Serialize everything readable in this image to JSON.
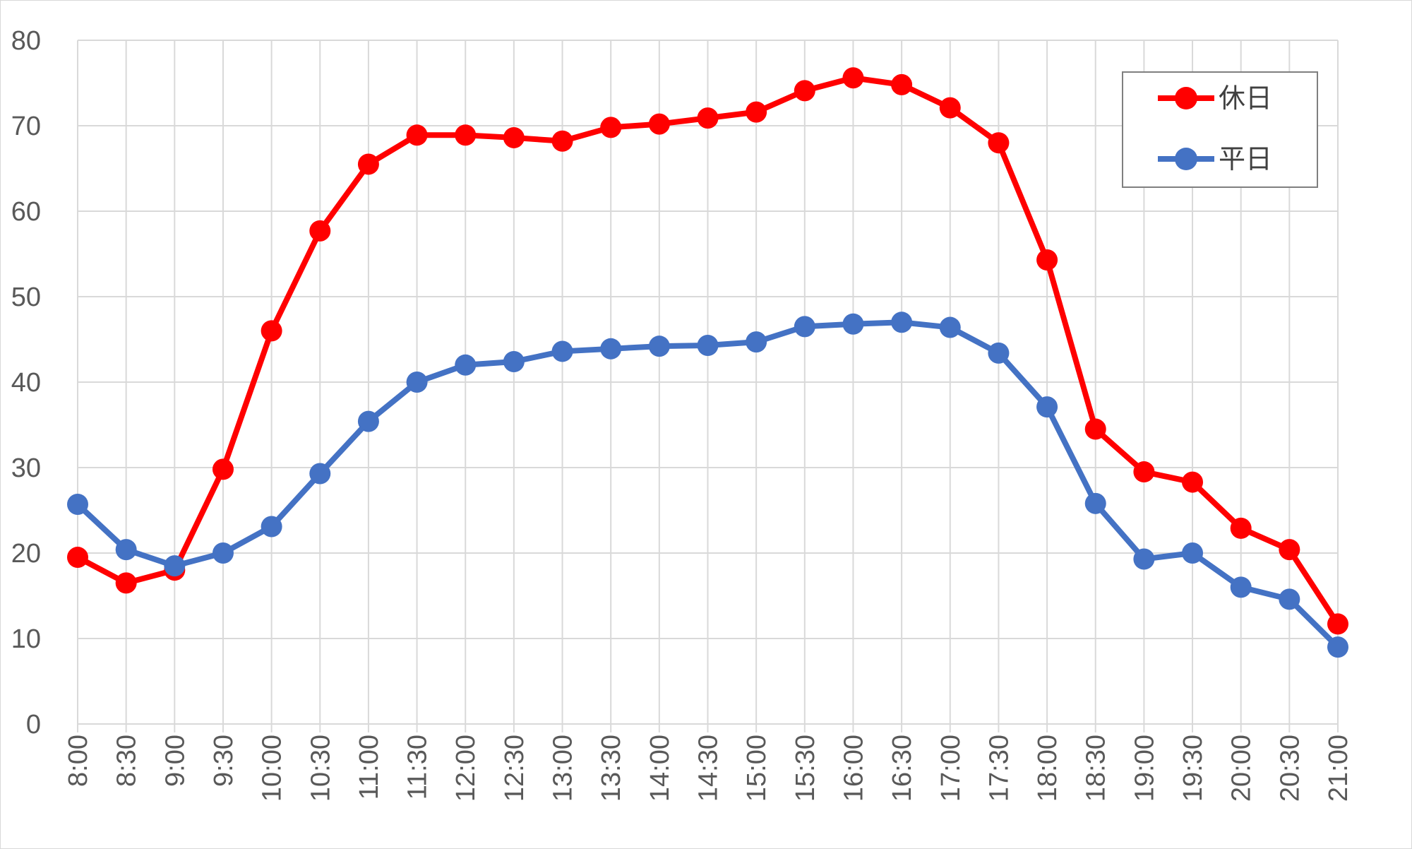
{
  "chart_data": {
    "type": "line",
    "title": "",
    "xlabel": "",
    "ylabel": "",
    "ylim": [
      0,
      80
    ],
    "yticks": [
      "0",
      "10",
      "20",
      "30",
      "40",
      "50",
      "60",
      "70",
      "80"
    ],
    "categories": [
      "8:00",
      "8:30",
      "9:00",
      "9:30",
      "10:00",
      "10:30",
      "11:00",
      "11:30",
      "12:00",
      "12:30",
      "13:00",
      "13:30",
      "14:00",
      "14:30",
      "15:00",
      "15:30",
      "16:00",
      "16:30",
      "17:00",
      "17:30",
      "18:00",
      "18:30",
      "19:00",
      "19:30",
      "20:00",
      "20:30",
      "21:00"
    ],
    "grid": true,
    "legend_position": "top-right",
    "series": [
      {
        "name": "休日",
        "color": "#ff0000",
        "values": [
          19.5,
          16.5,
          18.0,
          29.8,
          46.0,
          57.7,
          65.5,
          68.9,
          68.9,
          68.6,
          68.2,
          69.8,
          70.2,
          70.9,
          71.6,
          74.1,
          75.6,
          74.8,
          72.1,
          68.0,
          54.3,
          34.5,
          29.5,
          28.3,
          22.9,
          20.4,
          11.7
        ]
      },
      {
        "name": "平日",
        "color": "#4472c4",
        "values": [
          25.7,
          20.4,
          18.5,
          20.0,
          23.1,
          29.3,
          35.4,
          40.0,
          42.0,
          42.4,
          43.6,
          43.9,
          44.2,
          44.3,
          44.7,
          46.5,
          46.8,
          47.0,
          46.4,
          43.4,
          37.1,
          25.8,
          19.3,
          20.0,
          16.0,
          14.6,
          9.0
        ]
      }
    ]
  }
}
